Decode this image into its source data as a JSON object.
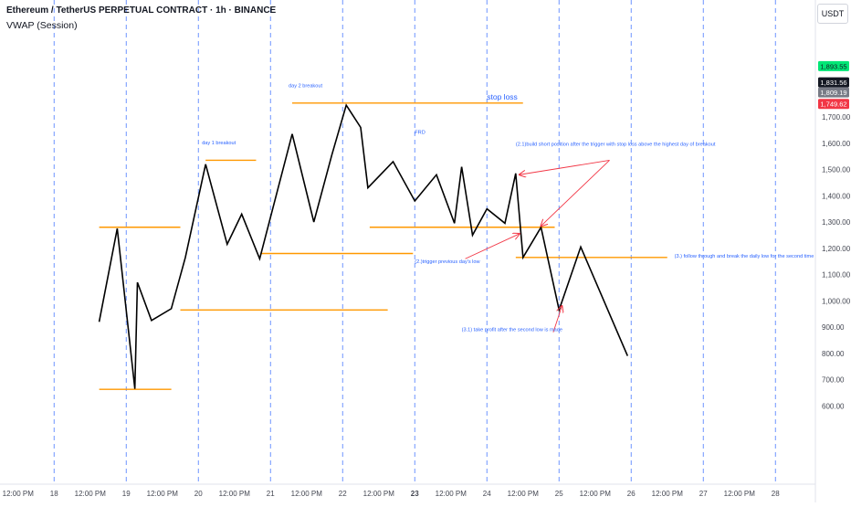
{
  "header": {
    "title": "Ethereum / TetherUS PERPETUAL CONTRACT · 1h · BINANCE",
    "indicator": "VWAP (Session)"
  },
  "currency_label": "USDT",
  "colors": {
    "price_line": "#000000",
    "level_line": "#ff9800",
    "annotation_text": "#2962ff",
    "arrow": "#f23645",
    "session_divider": "#2962ff",
    "axis_text": "#434651"
  },
  "chart_data": {
    "type": "line",
    "series": [
      {
        "values": [
          {
            "x": 17.625,
            "y": 920
          },
          {
            "x": 17.875,
            "y": 1275
          },
          {
            "x": 18.12,
            "y": 665
          },
          {
            "x": 18.155,
            "y": 1070
          },
          {
            "x": 18.35,
            "y": 925
          },
          {
            "x": 18.625,
            "y": 970
          },
          {
            "x": 18.82,
            "y": 1165
          },
          {
            "x": 19.1,
            "y": 1520
          },
          {
            "x": 19.4,
            "y": 1215
          },
          {
            "x": 19.6,
            "y": 1330
          },
          {
            "x": 19.85,
            "y": 1160
          },
          {
            "x": 20.3,
            "y": 1635
          },
          {
            "x": 20.6,
            "y": 1300
          },
          {
            "x": 20.85,
            "y": 1555
          },
          {
            "x": 21.05,
            "y": 1745
          },
          {
            "x": 21.25,
            "y": 1660
          },
          {
            "x": 21.35,
            "y": 1430
          },
          {
            "x": 21.7,
            "y": 1530
          },
          {
            "x": 22.0,
            "y": 1380
          },
          {
            "x": 22.3,
            "y": 1480
          },
          {
            "x": 22.55,
            "y": 1295
          },
          {
            "x": 22.65,
            "y": 1510
          },
          {
            "x": 22.8,
            "y": 1250
          },
          {
            "x": 23.0,
            "y": 1350
          },
          {
            "x": 23.25,
            "y": 1295
          },
          {
            "x": 23.4,
            "y": 1485
          },
          {
            "x": 23.5,
            "y": 1165
          },
          {
            "x": 23.75,
            "y": 1280
          },
          {
            "x": 24.0,
            "y": 965
          },
          {
            "x": 24.3,
            "y": 1205
          },
          {
            "x": 24.95,
            "y": 790
          }
        ]
      }
    ],
    "levels": [
      {
        "y": 1280,
        "x1": 17.625,
        "x2": 18.75
      },
      {
        "y": 663,
        "x1": 17.625,
        "x2": 18.625
      },
      {
        "y": 965,
        "x1": 18.75,
        "x2": 21.625
      },
      {
        "y": 1535,
        "x1": 19.1,
        "x2": 19.8
      },
      {
        "y": 1180,
        "x1": 19.875,
        "x2": 21.975
      },
      {
        "y": 1753,
        "x1": 20.3,
        "x2": 23.5
      },
      {
        "y": 1280,
        "x1": 21.375,
        "x2": 23.94
      },
      {
        "y": 1165,
        "x1": 23.4,
        "x2": 25.5
      }
    ],
    "annotations": [
      {
        "text": "day 1 breakout",
        "x": 19.05,
        "y": 1595
      },
      {
        "text": "day 2 breakout",
        "x": 20.25,
        "y": 1813
      },
      {
        "text": "stop loss",
        "x": 23.0,
        "y": 1766
      },
      {
        "text": "FRD",
        "x": 22.0,
        "y": 1635
      },
      {
        "text": "(2.1)build short position after the trigger with stop loss above the highest day of breakout",
        "x": 23.4,
        "y": 1590
      },
      {
        "text": "(2.)trigger previous day's low",
        "x": 22.0,
        "y": 1143
      },
      {
        "text": "(3.) follow through and break the daily low for the second time",
        "x": 25.6,
        "y": 1165
      },
      {
        "text": "(3.1) take profit after the second low is made",
        "x": 22.65,
        "y": 885
      }
    ],
    "arrows": [
      {
        "from": {
          "x": 24.7,
          "y": 1535
        },
        "to": {
          "x": 23.45,
          "y": 1480
        }
      },
      {
        "from": {
          "x": 24.7,
          "y": 1535
        },
        "to": {
          "x": 23.75,
          "y": 1285
        }
      },
      {
        "from": {
          "x": 22.7,
          "y": 1160
        },
        "to": {
          "x": 23.45,
          "y": 1255
        }
      },
      {
        "from": {
          "x": 23.92,
          "y": 880
        },
        "to": {
          "x": 24.04,
          "y": 980
        }
      }
    ],
    "session_dividers": [
      17.0,
      18.0,
      19.0,
      20.0,
      21.0,
      22.0,
      23.0,
      24.0,
      25.0,
      26.0,
      27.0
    ],
    "y_ticks": [
      "1,700.00",
      "1,600.00",
      "1,500.00",
      "1,400.00",
      "1,300.00",
      "1,200.00",
      "1,100.00",
      "1,000.00",
      "900.00",
      "800.00",
      "700.00",
      "600.00"
    ],
    "y_tick_values": [
      1700,
      1600,
      1500,
      1400,
      1300,
      1200,
      1100,
      1000,
      900,
      800,
      700,
      600
    ],
    "x_ticks": [
      {
        "x": 16.5,
        "label": "12:00 PM",
        "bold": false
      },
      {
        "x": 17.0,
        "label": "18",
        "bold": false
      },
      {
        "x": 17.5,
        "label": "12:00 PM",
        "bold": false
      },
      {
        "x": 18.0,
        "label": "19",
        "bold": false
      },
      {
        "x": 18.5,
        "label": "12:00 PM",
        "bold": false
      },
      {
        "x": 19.0,
        "label": "20",
        "bold": false
      },
      {
        "x": 19.5,
        "label": "12:00 PM",
        "bold": false
      },
      {
        "x": 20.0,
        "label": "21",
        "bold": false
      },
      {
        "x": 20.5,
        "label": "12:00 PM",
        "bold": false
      },
      {
        "x": 21.0,
        "label": "22",
        "bold": false
      },
      {
        "x": 21.5,
        "label": "12:00 PM",
        "bold": false
      },
      {
        "x": 22.0,
        "label": "23",
        "bold": true
      },
      {
        "x": 22.5,
        "label": "12:00 PM",
        "bold": false
      },
      {
        "x": 23.0,
        "label": "24",
        "bold": false
      },
      {
        "x": 23.5,
        "label": "12:00 PM",
        "bold": false
      },
      {
        "x": 24.0,
        "label": "25",
        "bold": false
      },
      {
        "x": 24.5,
        "label": "12:00 PM",
        "bold": false
      },
      {
        "x": 25.0,
        "label": "26",
        "bold": false
      },
      {
        "x": 25.5,
        "label": "12:00 PM",
        "bold": false
      },
      {
        "x": 26.0,
        "label": "27",
        "bold": false
      },
      {
        "x": 26.5,
        "label": "12:00 PM",
        "bold": false
      },
      {
        "x": 27.0,
        "label": "28",
        "bold": false
      }
    ],
    "price_badges": [
      {
        "label": "1,893.55",
        "value": 1893.55,
        "bg": "#00e676",
        "fg": "#131722"
      },
      {
        "label": "1,831.56",
        "value": 1831.56,
        "bg": "#131722",
        "fg": "#ffffff"
      },
      {
        "label": "1,809.19",
        "value": 1809.19,
        "bg": "#787b86",
        "fg": "#ffffff"
      },
      {
        "label": "1,749.62",
        "value": 1749.62,
        "bg": "#f23645",
        "fg": "#ffffff"
      }
    ],
    "ylim": [
      560,
      1910
    ],
    "xlim": [
      16.25,
      27.35
    ]
  }
}
